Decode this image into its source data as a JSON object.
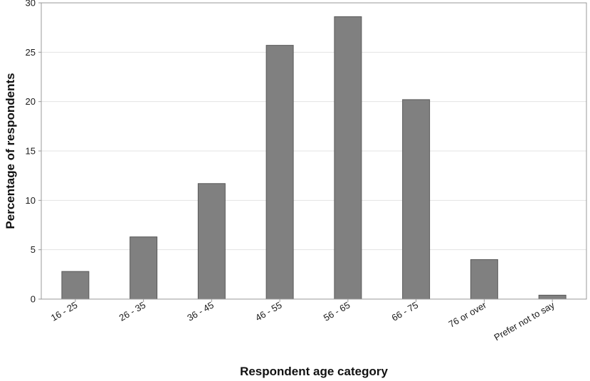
{
  "chart_data": {
    "type": "bar",
    "title": "",
    "xlabel": "Respondent age category",
    "ylabel": "Percentage of respondents",
    "categories": [
      "16 - 25",
      "26 - 35",
      "36 - 45",
      "46 - 55",
      "56 - 65",
      "66 - 75",
      "76 or over",
      "Prefer not to say"
    ],
    "values": [
      2.8,
      6.3,
      11.7,
      25.7,
      28.6,
      20.2,
      4.0,
      0.4
    ],
    "ylim": [
      0,
      30
    ],
    "yticks": [
      0,
      5,
      10,
      15,
      20,
      25,
      30
    ],
    "grid": true,
    "legend": "none",
    "colors": {
      "bar_fill": "#808080",
      "bar_stroke": "#5a5a5a",
      "grid": "#e3e3e3",
      "axis": "#9a9a9a"
    }
  }
}
